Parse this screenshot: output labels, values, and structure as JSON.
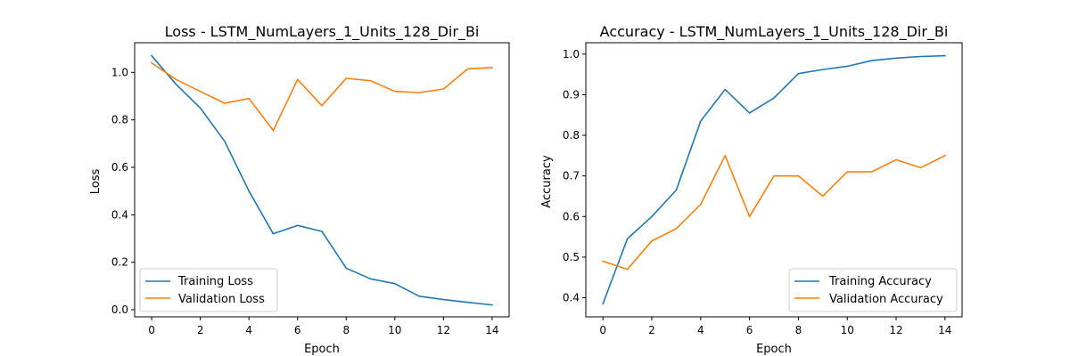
{
  "chart_data": [
    {
      "type": "line",
      "title": "Loss - LSTM_NumLayers_1_Units_128_Dir_Bi",
      "xlabel": "Epoch",
      "ylabel": "Loss",
      "x": [
        0,
        1,
        2,
        3,
        4,
        5,
        6,
        7,
        8,
        9,
        10,
        11,
        12,
        13,
        14
      ],
      "xlim": [
        -0.7,
        14.7
      ],
      "ylim": [
        -0.03,
        1.125
      ],
      "xticks": [
        0,
        2,
        4,
        6,
        8,
        10,
        12,
        14
      ],
      "yticks": [
        0.0,
        0.2,
        0.4,
        0.6,
        0.8,
        1.0
      ],
      "ytick_format": 1,
      "grid": false,
      "legend_position": "lower-left",
      "series": [
        {
          "name": "Training Loss",
          "color": "#1f77b4",
          "values": [
            1.07,
            0.95,
            0.85,
            0.71,
            0.5,
            0.32,
            0.355,
            0.33,
            0.175,
            0.13,
            0.11,
            0.057,
            0.043,
            0.031,
            0.02
          ]
        },
        {
          "name": "Validation Loss",
          "color": "#ff7f0e",
          "values": [
            1.04,
            0.97,
            0.92,
            0.87,
            0.89,
            0.755,
            0.97,
            0.86,
            0.975,
            0.965,
            0.92,
            0.915,
            0.93,
            1.015,
            1.02
          ]
        }
      ]
    },
    {
      "type": "line",
      "title": "Accuracy - LSTM_NumLayers_1_Units_128_Dir_Bi",
      "xlabel": "Epoch",
      "ylabel": "Accuracy",
      "x": [
        0,
        1,
        2,
        3,
        4,
        5,
        6,
        7,
        8,
        9,
        10,
        11,
        12,
        13,
        14
      ],
      "xlim": [
        -0.7,
        14.7
      ],
      "ylim": [
        0.353,
        1.028
      ],
      "xticks": [
        0,
        2,
        4,
        6,
        8,
        10,
        12,
        14
      ],
      "yticks": [
        0.4,
        0.5,
        0.6,
        0.7,
        0.8,
        0.9,
        1.0
      ],
      "ytick_format": 1,
      "grid": false,
      "legend_position": "lower-right",
      "series": [
        {
          "name": "Training Accuracy",
          "color": "#1f77b4",
          "values": [
            0.385,
            0.545,
            0.6,
            0.665,
            0.835,
            0.913,
            0.855,
            0.892,
            0.952,
            0.962,
            0.97,
            0.984,
            0.99,
            0.994,
            0.996
          ]
        },
        {
          "name": "Validation Accuracy",
          "color": "#ff7f0e",
          "values": [
            0.49,
            0.47,
            0.54,
            0.57,
            0.63,
            0.75,
            0.6,
            0.7,
            0.7,
            0.65,
            0.71,
            0.71,
            0.74,
            0.72,
            0.75
          ]
        }
      ]
    }
  ]
}
